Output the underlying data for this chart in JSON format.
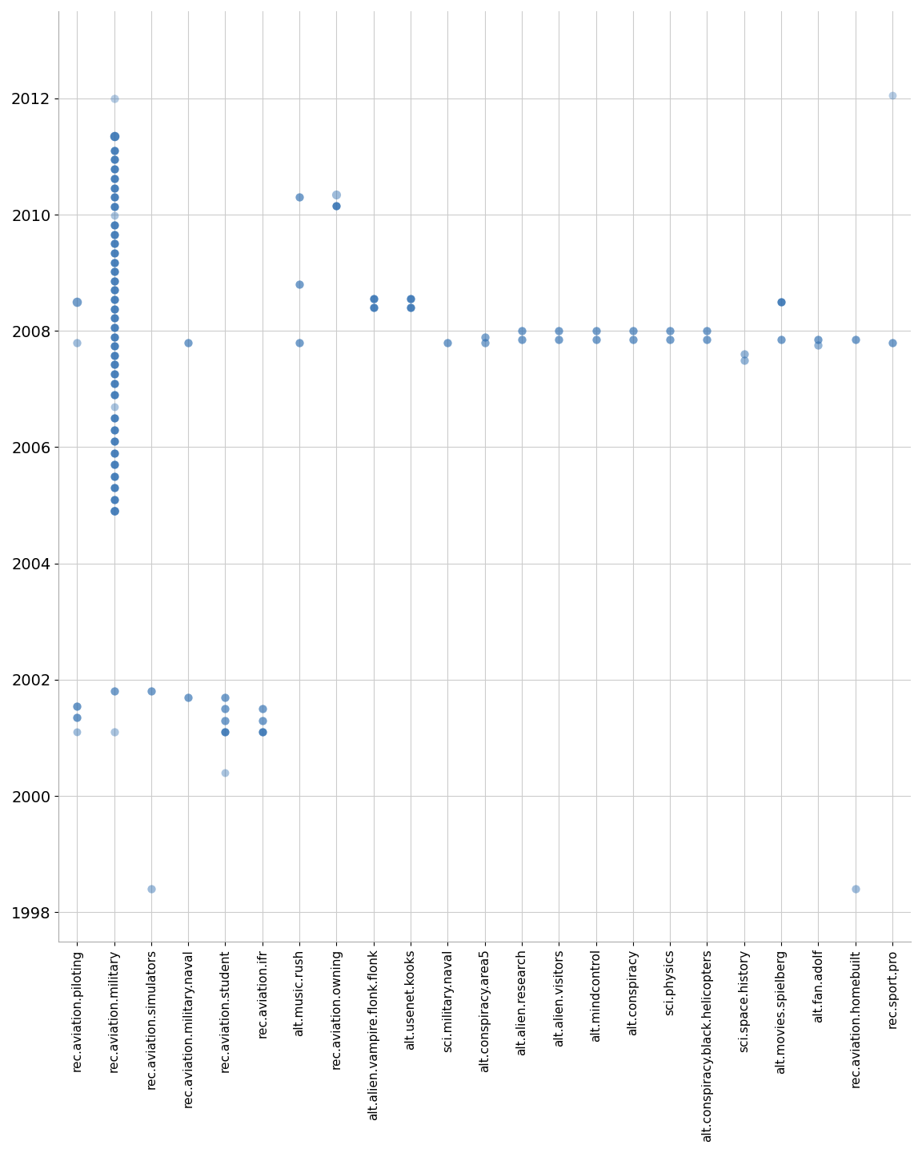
{
  "points": [
    {
      "x": "rec.aviation.piloting",
      "y": 2008.5,
      "size": 70,
      "alpha": 0.65
    },
    {
      "x": "rec.aviation.piloting",
      "y": 2007.8,
      "size": 55,
      "alpha": 0.45
    },
    {
      "x": "rec.aviation.piloting",
      "y": 2001.55,
      "size": 55,
      "alpha": 0.7
    },
    {
      "x": "rec.aviation.piloting",
      "y": 2001.35,
      "size": 55,
      "alpha": 0.7
    },
    {
      "x": "rec.aviation.piloting",
      "y": 2001.1,
      "size": 50,
      "alpha": 0.45
    },
    {
      "x": "rec.aviation.military",
      "y": 2012.0,
      "size": 55,
      "alpha": 0.35
    },
    {
      "x": "rec.aviation.military",
      "y": 2011.35,
      "size": 70,
      "alpha": 0.85
    },
    {
      "x": "rec.aviation.military",
      "y": 2011.1,
      "size": 55,
      "alpha": 0.85
    },
    {
      "x": "rec.aviation.military",
      "y": 2010.95,
      "size": 55,
      "alpha": 0.85
    },
    {
      "x": "rec.aviation.military",
      "y": 2010.78,
      "size": 55,
      "alpha": 0.85
    },
    {
      "x": "rec.aviation.military",
      "y": 2010.62,
      "size": 55,
      "alpha": 0.85
    },
    {
      "x": "rec.aviation.military",
      "y": 2010.46,
      "size": 55,
      "alpha": 0.85
    },
    {
      "x": "rec.aviation.military",
      "y": 2010.3,
      "size": 55,
      "alpha": 0.85
    },
    {
      "x": "rec.aviation.military",
      "y": 2010.14,
      "size": 55,
      "alpha": 0.85
    },
    {
      "x": "rec.aviation.military",
      "y": 2009.98,
      "size": 50,
      "alpha": 0.4
    },
    {
      "x": "rec.aviation.military",
      "y": 2009.82,
      "size": 55,
      "alpha": 0.85
    },
    {
      "x": "rec.aviation.military",
      "y": 2009.66,
      "size": 55,
      "alpha": 0.85
    },
    {
      "x": "rec.aviation.military",
      "y": 2009.5,
      "size": 55,
      "alpha": 0.85
    },
    {
      "x": "rec.aviation.military",
      "y": 2009.34,
      "size": 55,
      "alpha": 0.85
    },
    {
      "x": "rec.aviation.military",
      "y": 2009.18,
      "size": 55,
      "alpha": 0.85
    },
    {
      "x": "rec.aviation.military",
      "y": 2009.02,
      "size": 55,
      "alpha": 0.85
    },
    {
      "x": "rec.aviation.military",
      "y": 2008.86,
      "size": 55,
      "alpha": 0.85
    },
    {
      "x": "rec.aviation.military",
      "y": 2008.7,
      "size": 55,
      "alpha": 0.85
    },
    {
      "x": "rec.aviation.military",
      "y": 2008.54,
      "size": 55,
      "alpha": 0.85
    },
    {
      "x": "rec.aviation.military",
      "y": 2008.38,
      "size": 55,
      "alpha": 0.85
    },
    {
      "x": "rec.aviation.military",
      "y": 2008.22,
      "size": 55,
      "alpha": 0.85
    },
    {
      "x": "rec.aviation.military",
      "y": 2008.06,
      "size": 55,
      "alpha": 0.85
    },
    {
      "x": "rec.aviation.military",
      "y": 2007.9,
      "size": 55,
      "alpha": 0.85
    },
    {
      "x": "rec.aviation.military",
      "y": 2007.74,
      "size": 55,
      "alpha": 0.85
    },
    {
      "x": "rec.aviation.military",
      "y": 2007.58,
      "size": 55,
      "alpha": 0.85
    },
    {
      "x": "rec.aviation.military",
      "y": 2007.42,
      "size": 55,
      "alpha": 0.85
    },
    {
      "x": "rec.aviation.military",
      "y": 2007.26,
      "size": 55,
      "alpha": 0.85
    },
    {
      "x": "rec.aviation.military",
      "y": 2007.1,
      "size": 55,
      "alpha": 0.85
    },
    {
      "x": "rec.aviation.military",
      "y": 2006.9,
      "size": 55,
      "alpha": 0.85
    },
    {
      "x": "rec.aviation.military",
      "y": 2006.7,
      "size": 50,
      "alpha": 0.4
    },
    {
      "x": "rec.aviation.military",
      "y": 2006.5,
      "size": 55,
      "alpha": 0.85
    },
    {
      "x": "rec.aviation.military",
      "y": 2006.3,
      "size": 55,
      "alpha": 0.85
    },
    {
      "x": "rec.aviation.military",
      "y": 2006.1,
      "size": 55,
      "alpha": 0.85
    },
    {
      "x": "rec.aviation.military",
      "y": 2005.9,
      "size": 55,
      "alpha": 0.85
    },
    {
      "x": "rec.aviation.military",
      "y": 2005.7,
      "size": 55,
      "alpha": 0.85
    },
    {
      "x": "rec.aviation.military",
      "y": 2005.5,
      "size": 55,
      "alpha": 0.85
    },
    {
      "x": "rec.aviation.military",
      "y": 2005.3,
      "size": 55,
      "alpha": 0.85
    },
    {
      "x": "rec.aviation.military",
      "y": 2005.1,
      "size": 55,
      "alpha": 0.85
    },
    {
      "x": "rec.aviation.military",
      "y": 2004.9,
      "size": 60,
      "alpha": 0.85
    },
    {
      "x": "rec.aviation.military",
      "y": 2001.8,
      "size": 55,
      "alpha": 0.65
    },
    {
      "x": "rec.aviation.military",
      "y": 2001.1,
      "size": 55,
      "alpha": 0.4
    },
    {
      "x": "rec.aviation.simulators",
      "y": 1998.4,
      "size": 55,
      "alpha": 0.45
    },
    {
      "x": "rec.aviation.simulators",
      "y": 2001.8,
      "size": 55,
      "alpha": 0.65
    },
    {
      "x": "rec.aviation.military.naval",
      "y": 2007.8,
      "size": 55,
      "alpha": 0.65
    },
    {
      "x": "rec.aviation.military.naval",
      "y": 2001.7,
      "size": 55,
      "alpha": 0.65
    },
    {
      "x": "rec.aviation.student",
      "y": 2001.7,
      "size": 55,
      "alpha": 0.65
    },
    {
      "x": "rec.aviation.student",
      "y": 2001.5,
      "size": 55,
      "alpha": 0.65
    },
    {
      "x": "rec.aviation.student",
      "y": 2001.3,
      "size": 55,
      "alpha": 0.65
    },
    {
      "x": "rec.aviation.student",
      "y": 2001.1,
      "size": 55,
      "alpha": 0.85
    },
    {
      "x": "rec.aviation.student",
      "y": 2000.4,
      "size": 50,
      "alpha": 0.4
    },
    {
      "x": "rec.aviation.ifr",
      "y": 2001.5,
      "size": 55,
      "alpha": 0.65
    },
    {
      "x": "rec.aviation.ifr",
      "y": 2001.3,
      "size": 55,
      "alpha": 0.65
    },
    {
      "x": "rec.aviation.ifr",
      "y": 2001.1,
      "size": 55,
      "alpha": 0.85
    },
    {
      "x": "alt.music.rush",
      "y": 2010.3,
      "size": 55,
      "alpha": 0.65
    },
    {
      "x": "alt.music.rush",
      "y": 2008.8,
      "size": 55,
      "alpha": 0.65
    },
    {
      "x": "alt.music.rush",
      "y": 2007.8,
      "size": 55,
      "alpha": 0.65
    },
    {
      "x": "rec.aviation.owning",
      "y": 2010.35,
      "size": 65,
      "alpha": 0.45
    },
    {
      "x": "rec.aviation.owning",
      "y": 2010.15,
      "size": 55,
      "alpha": 0.85
    },
    {
      "x": "alt.alien.vampire.flonk.flonk",
      "y": 2008.55,
      "size": 55,
      "alpha": 0.85
    },
    {
      "x": "alt.alien.vampire.flonk.flonk",
      "y": 2008.4,
      "size": 55,
      "alpha": 0.85
    },
    {
      "x": "alt.usenet.kooks",
      "y": 2008.55,
      "size": 55,
      "alpha": 0.85
    },
    {
      "x": "alt.usenet.kooks",
      "y": 2008.4,
      "size": 55,
      "alpha": 0.85
    },
    {
      "x": "sci.military.naval",
      "y": 2007.8,
      "size": 55,
      "alpha": 0.65
    },
    {
      "x": "alt.conspiracy.area5",
      "y": 2007.9,
      "size": 55,
      "alpha": 0.6
    },
    {
      "x": "alt.conspiracy.area5",
      "y": 2007.8,
      "size": 55,
      "alpha": 0.6
    },
    {
      "x": "alt.alien.research",
      "y": 2008.0,
      "size": 55,
      "alpha": 0.65
    },
    {
      "x": "alt.alien.research",
      "y": 2007.85,
      "size": 55,
      "alpha": 0.65
    },
    {
      "x": "alt.alien.visitors",
      "y": 2008.0,
      "size": 55,
      "alpha": 0.65
    },
    {
      "x": "alt.alien.visitors",
      "y": 2007.85,
      "size": 55,
      "alpha": 0.65
    },
    {
      "x": "alt.mindcontrol",
      "y": 2008.0,
      "size": 55,
      "alpha": 0.65
    },
    {
      "x": "alt.mindcontrol",
      "y": 2007.85,
      "size": 55,
      "alpha": 0.65
    },
    {
      "x": "alt.conspiracy",
      "y": 2008.0,
      "size": 55,
      "alpha": 0.65
    },
    {
      "x": "alt.conspiracy",
      "y": 2007.85,
      "size": 55,
      "alpha": 0.65
    },
    {
      "x": "sci.physics",
      "y": 2008.0,
      "size": 55,
      "alpha": 0.65
    },
    {
      "x": "sci.physics",
      "y": 2007.85,
      "size": 55,
      "alpha": 0.65
    },
    {
      "x": "alt.conspiracy.black.helicopters",
      "y": 2008.0,
      "size": 55,
      "alpha": 0.65
    },
    {
      "x": "alt.conspiracy.black.helicopters",
      "y": 2007.85,
      "size": 55,
      "alpha": 0.65
    },
    {
      "x": "sci.space.history",
      "y": 2007.6,
      "size": 55,
      "alpha": 0.5
    },
    {
      "x": "sci.space.history",
      "y": 2007.5,
      "size": 55,
      "alpha": 0.5
    },
    {
      "x": "alt.movies.spielberg",
      "y": 2008.5,
      "size": 55,
      "alpha": 0.85
    },
    {
      "x": "alt.movies.spielberg",
      "y": 2007.85,
      "size": 55,
      "alpha": 0.65
    },
    {
      "x": "alt.fan.adolf",
      "y": 2007.85,
      "size": 55,
      "alpha": 0.65
    },
    {
      "x": "alt.fan.adolf",
      "y": 2007.75,
      "size": 55,
      "alpha": 0.5
    },
    {
      "x": "rec.aviation.homebuilt",
      "y": 1998.4,
      "size": 55,
      "alpha": 0.45
    },
    {
      "x": "rec.aviation.homebuilt",
      "y": 2007.85,
      "size": 55,
      "alpha": 0.65
    },
    {
      "x": "rec.sport.pro",
      "y": 2012.05,
      "size": 50,
      "alpha": 0.35
    },
    {
      "x": "rec.sport.pro",
      "y": 2007.8,
      "size": 55,
      "alpha": 0.65
    }
  ],
  "categories": [
    "rec.aviation.piloting",
    "rec.aviation.military",
    "rec.aviation.simulators",
    "rec.aviation.military.naval",
    "rec.aviation.student",
    "rec.aviation.ifr",
    "alt.music.rush",
    "rec.aviation.owning",
    "alt.alien.vampire.flonk.flonk",
    "alt.usenet.kooks",
    "sci.military.naval",
    "alt.conspiracy.area5",
    "alt.alien.research",
    "alt.alien.visitors",
    "alt.mindcontrol",
    "alt.conspiracy",
    "sci.physics",
    "alt.conspiracy.black.helicopters",
    "sci.space.history",
    "alt.movies.spielberg",
    "alt.fan.adolf",
    "rec.aviation.homebuilt",
    "rec.sport.pro"
  ],
  "ylim": [
    1997.5,
    2013.5
  ],
  "yticks": [
    1998,
    2000,
    2002,
    2004,
    2006,
    2008,
    2010,
    2012
  ],
  "point_color": "#2b6cb0",
  "background_color": "#ffffff",
  "grid_color": "#cccccc",
  "tick_fontsize": 14,
  "xtick_fontsize": 11
}
